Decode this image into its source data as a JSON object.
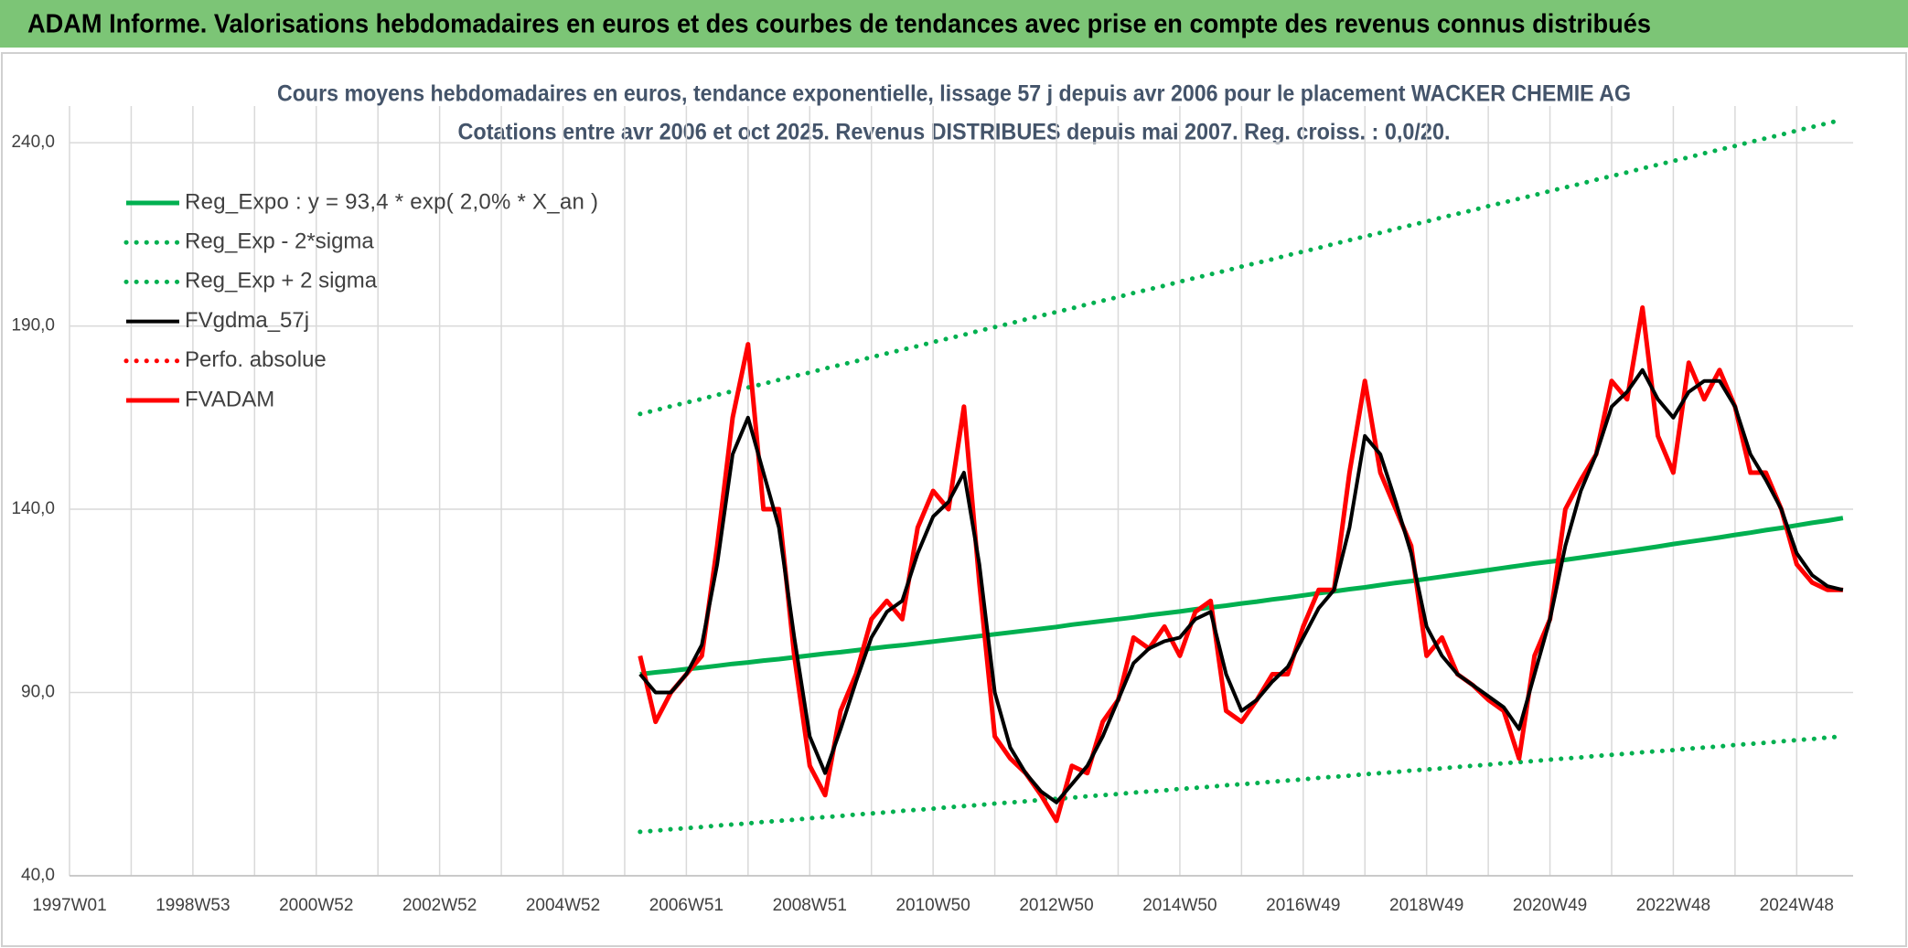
{
  "header": {
    "title": "ADAM Informe. Valorisations hebdomadaires en euros et des courbes de tendances avec prise en compte des revenus connus distribués"
  },
  "chart_data": {
    "type": "line",
    "title": "Cours moyens hebdomadaires en euros, tendance exponentielle, lissage 57 j depuis avr 2006 pour le placement WACKER CHEMIE AG",
    "subtitle": "Cotations entre avr 2006 et oct 2025. Revenus DISTRIBUES depuis mai 2007. Reg. croiss. : 0,0/20.",
    "legend": "upper left",
    "grid": true,
    "ylim": [
      40,
      250
    ],
    "yticks": [
      {
        "value": 40,
        "label": "40,0"
      },
      {
        "value": 90,
        "label": "90,0"
      },
      {
        "value": 140,
        "label": "140,0"
      },
      {
        "value": 190,
        "label": "190,0"
      },
      {
        "value": 240,
        "label": "240,0"
      }
    ],
    "categories": [
      "1997W01",
      null,
      null,
      null,
      null,
      null,
      null,
      null,
      "1998W53",
      null,
      null,
      null,
      null,
      null,
      null,
      null,
      "2000W52",
      null,
      null,
      null,
      null,
      null,
      null,
      null,
      "2002W52",
      null,
      null,
      null,
      null,
      null,
      null,
      null,
      "2004W52",
      null,
      null,
      null,
      null,
      null,
      null,
      null,
      "2006W51",
      null,
      null,
      null,
      null,
      null,
      null,
      null,
      "2008W51",
      null,
      null,
      null,
      null,
      null,
      null,
      null,
      "2010W50",
      null,
      null,
      null,
      null,
      null,
      null,
      null,
      "2012W50",
      null,
      null,
      null,
      null,
      null,
      null,
      null,
      "2014W50",
      null,
      null,
      null,
      null,
      null,
      null,
      null,
      "2016W49",
      null,
      null,
      null,
      null,
      null,
      null,
      null,
      "2018W49",
      null,
      null,
      null,
      null,
      null,
      null,
      null,
      "2020W49",
      null,
      null,
      null,
      null,
      null,
      null,
      null,
      "2022W48",
      null,
      null,
      null,
      null,
      null,
      null,
      null,
      "2024W48",
      null,
      null,
      null
    ],
    "series": [
      {
        "name": "Reg_Expo : y = 93,4 * exp( 2,0% *  X_an )",
        "color": "#00b050",
        "style": "solid",
        "values": [
          null,
          null,
          null,
          null,
          null,
          null,
          null,
          null,
          null,
          null,
          null,
          null,
          null,
          null,
          null,
          null,
          null,
          null,
          null,
          null,
          null,
          null,
          null,
          null,
          null,
          null,
          null,
          null,
          null,
          null,
          null,
          null,
          null,
          null,
          null,
          null,
          null,
          95.0,
          95.5,
          95.9,
          96.4,
          96.8,
          97.3,
          97.8,
          98.2,
          98.7,
          99.1,
          99.6,
          100.1,
          100.6,
          101.0,
          101.5,
          102.0,
          102.5,
          102.9,
          103.4,
          103.9,
          104.4,
          104.9,
          105.4,
          105.9,
          106.4,
          106.9,
          107.4,
          107.9,
          108.5,
          109.0,
          109.5,
          110.0,
          110.5,
          111.1,
          111.6,
          112.1,
          112.7,
          113.2,
          113.7,
          114.3,
          114.8,
          115.4,
          115.9,
          116.5,
          117.1,
          117.6,
          118.2,
          118.7,
          119.3,
          119.9,
          120.4,
          121.0,
          121.6,
          122.2,
          122.8,
          123.4,
          124.0,
          124.6,
          125.2,
          125.7,
          126.2,
          126.8,
          127.4,
          128.0,
          128.6,
          129.2,
          129.8,
          130.5,
          131.1,
          131.7,
          132.3,
          133.0,
          133.6,
          134.3,
          134.9,
          135.6,
          136.3,
          136.9,
          137.6
        ]
      },
      {
        "name": "Reg_Exp - 2*sigma",
        "color": "#00b050",
        "style": "dotted",
        "values": [
          null,
          null,
          null,
          null,
          null,
          null,
          null,
          null,
          null,
          null,
          null,
          null,
          null,
          null,
          null,
          null,
          null,
          null,
          null,
          null,
          null,
          null,
          null,
          null,
          null,
          null,
          null,
          null,
          null,
          null,
          null,
          null,
          null,
          null,
          null,
          null,
          null,
          52.0,
          52.3,
          52.7,
          53.0,
          53.3,
          53.7,
          54.0,
          54.3,
          54.7,
          55.0,
          55.3,
          55.7,
          56.0,
          56.3,
          56.7,
          57.0,
          57.3,
          57.7,
          58.0,
          58.3,
          58.7,
          59.0,
          59.3,
          59.7,
          60.0,
          60.3,
          60.7,
          61.0,
          61.3,
          61.7,
          62.0,
          62.3,
          62.7,
          63.0,
          63.3,
          63.7,
          64.0,
          64.3,
          64.7,
          65.0,
          65.3,
          65.7,
          66.0,
          66.3,
          66.7,
          67.0,
          67.3,
          67.7,
          68.0,
          68.3,
          68.7,
          69.0,
          69.3,
          69.7,
          70.0,
          70.3,
          70.7,
          71.0,
          71.3,
          71.7,
          72.0,
          72.3,
          72.7,
          73.0,
          73.3,
          73.7,
          74.0,
          74.3,
          74.7,
          75.0,
          75.3,
          75.7,
          76.0,
          76.3,
          76.7,
          77.0,
          77.3,
          77.7,
          78.0
        ]
      },
      {
        "name": "Reg_Exp + 2 sigma",
        "color": "#00b050",
        "style": "dotted",
        "values": [
          null,
          null,
          null,
          null,
          null,
          null,
          null,
          null,
          null,
          null,
          null,
          null,
          null,
          null,
          null,
          null,
          null,
          null,
          null,
          null,
          null,
          null,
          null,
          null,
          null,
          null,
          null,
          null,
          null,
          null,
          null,
          null,
          null,
          null,
          null,
          null,
          null,
          166.0,
          167.0,
          168.1,
          169.1,
          170.1,
          171.2,
          172.2,
          173.2,
          174.2,
          175.3,
          176.3,
          177.3,
          178.4,
          179.4,
          180.4,
          181.5,
          182.5,
          183.5,
          184.5,
          185.6,
          186.6,
          187.6,
          188.7,
          189.7,
          190.7,
          191.8,
          192.8,
          193.8,
          194.8,
          195.9,
          196.9,
          197.9,
          199.0,
          200.0,
          201.0,
          202.1,
          203.1,
          204.1,
          205.1,
          206.2,
          207.2,
          208.2,
          209.3,
          210.3,
          211.3,
          212.4,
          213.4,
          214.4,
          215.4,
          216.5,
          217.5,
          218.5,
          219.6,
          220.6,
          221.6,
          222.7,
          223.7,
          224.7,
          225.7,
          226.8,
          227.8,
          228.8,
          229.9,
          230.9,
          231.9,
          233.0,
          234.0,
          235.0,
          236.0,
          237.1,
          238.1,
          239.1,
          240.2,
          241.2,
          242.2,
          243.3,
          244.3,
          245.3,
          246.3
        ]
      },
      {
        "name": "FVgdma_57j",
        "color": "#000000",
        "style": "solid",
        "values": [
          null,
          null,
          null,
          null,
          null,
          null,
          null,
          null,
          null,
          null,
          null,
          null,
          null,
          null,
          null,
          null,
          null,
          null,
          null,
          null,
          null,
          null,
          null,
          null,
          null,
          null,
          null,
          null,
          null,
          null,
          null,
          null,
          null,
          null,
          null,
          null,
          null,
          95,
          90,
          90,
          95,
          103,
          125,
          155,
          165,
          150,
          135,
          105,
          78,
          68,
          80,
          93,
          105,
          112,
          115,
          128,
          138,
          142,
          150,
          125,
          90,
          75,
          68,
          63,
          60,
          65,
          70,
          78,
          88,
          98,
          102,
          104,
          105,
          110,
          112,
          95,
          85,
          88,
          93,
          97,
          105,
          113,
          118,
          135,
          160,
          155,
          142,
          128,
          108,
          100,
          95,
          92,
          89,
          86,
          80,
          95,
          110,
          130,
          145,
          155,
          168,
          172,
          178,
          170,
          165,
          172,
          175,
          175,
          168,
          155,
          148,
          140,
          128,
          122,
          119,
          118
        ]
      },
      {
        "name": "Perfo. absolue",
        "color": "#ff0000",
        "style": "dotted"
      },
      {
        "name": "FVADAM",
        "color": "#ff0000",
        "style": "solid",
        "values": [
          null,
          null,
          null,
          null,
          null,
          null,
          null,
          null,
          null,
          null,
          null,
          null,
          null,
          null,
          null,
          null,
          null,
          null,
          null,
          null,
          null,
          null,
          null,
          null,
          null,
          null,
          null,
          null,
          null,
          null,
          null,
          null,
          null,
          null,
          null,
          null,
          null,
          100,
          82,
          90,
          95,
          100,
          130,
          165,
          185,
          140,
          140,
          100,
          70,
          62,
          85,
          95,
          110,
          115,
          110,
          135,
          145,
          140,
          168,
          120,
          78,
          72,
          68,
          62,
          55,
          70,
          68,
          82,
          88,
          105,
          102,
          108,
          100,
          112,
          115,
          85,
          82,
          88,
          95,
          95,
          108,
          118,
          118,
          150,
          175,
          150,
          140,
          130,
          100,
          105,
          95,
          92,
          88,
          85,
          72,
          100,
          110,
          140,
          148,
          155,
          175,
          170,
          195,
          160,
          150,
          180,
          170,
          178,
          168,
          150,
          150,
          140,
          125,
          120,
          118,
          118
        ]
      }
    ]
  }
}
